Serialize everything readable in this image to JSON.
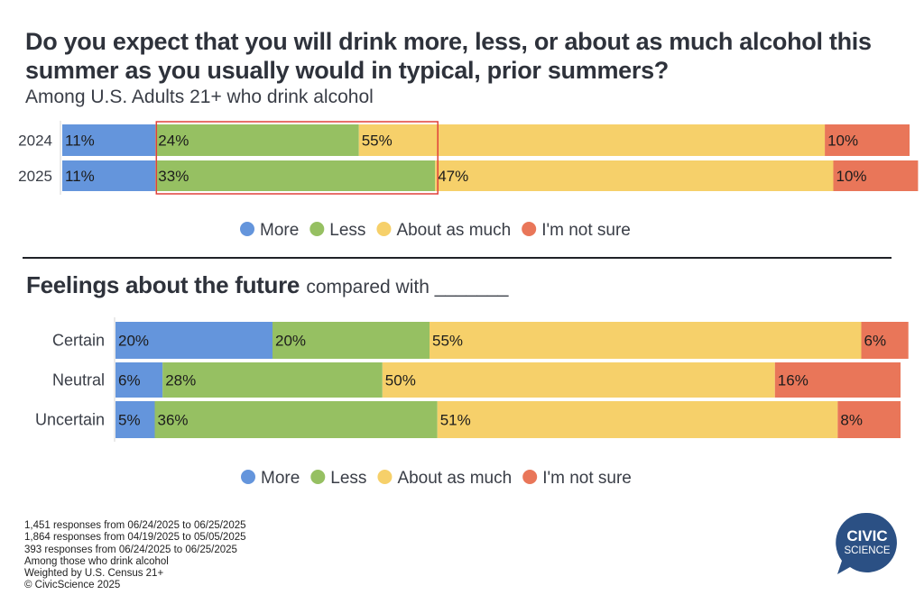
{
  "chart_data": [
    {
      "type": "bar",
      "orientation": "horizontal-stacked-100",
      "title": "Do you expect that you will drink more, less, or about as much alcohol this summer as you usually would in typical, prior summers?",
      "subtitle": "Among U.S. Adults 21+ who drink alcohol",
      "categories": [
        "2024",
        "2025"
      ],
      "series": [
        {
          "name": "More",
          "color": "#6495dc",
          "values": [
            11,
            11
          ]
        },
        {
          "name": "Less",
          "color": "#96c062",
          "values": [
            24,
            33
          ]
        },
        {
          "name": "About as much",
          "color": "#f6d06a",
          "values": [
            55,
            47
          ]
        },
        {
          "name": "I'm not sure",
          "color": "#e97659",
          "values": [
            10,
            10
          ]
        }
      ],
      "annotation": "Highlight box around 'Less' segments",
      "highlight_series": "Less",
      "highlight_color": "#e0413a",
      "xlim": [
        0,
        100
      ],
      "legend": "bottom-center",
      "grid": false
    },
    {
      "type": "bar",
      "orientation": "horizontal-stacked-100",
      "title": "Feelings about the future",
      "title_suffix": "compared with _______",
      "categories": [
        "Certain",
        "Neutral",
        "Uncertain"
      ],
      "series": [
        {
          "name": "More",
          "color": "#6495dc",
          "values": [
            20,
            6,
            5
          ]
        },
        {
          "name": "Less",
          "color": "#96c062",
          "values": [
            20,
            28,
            36
          ]
        },
        {
          "name": "About as much",
          "color": "#f6d06a",
          "values": [
            55,
            50,
            51
          ]
        },
        {
          "name": "I'm not sure",
          "color": "#e97659",
          "values": [
            6,
            16,
            8
          ]
        }
      ],
      "xlim": [
        0,
        100
      ],
      "legend": "bottom-center",
      "grid": false
    }
  ],
  "footer": {
    "lines": [
      "1,451 responses from 06/24/2025 to 06/25/2025",
      "1,864 responses from 04/19/2025 to 05/05/2025",
      "393 responses from 06/24/2025 to 06/25/2025",
      "Among those who drink alcohol",
      "Weighted by U.S. Census 21+",
      "© CivicScience 2025"
    ]
  },
  "logo": {
    "line1": "CIVIC",
    "line2": "SCIENCE",
    "color": "#2b5084"
  }
}
